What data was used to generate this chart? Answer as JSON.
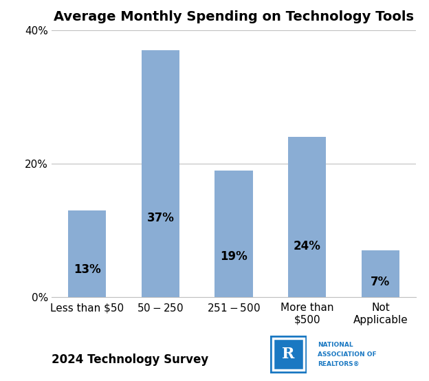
{
  "title": "Average Monthly Spending on Technology Tools",
  "categories": [
    "Less than $50",
    "$50 - $250",
    "$251 - $500",
    "More than\n$500",
    "Not\nApplicable"
  ],
  "values": [
    13,
    37,
    19,
    24,
    7
  ],
  "labels": [
    "13%",
    "37%",
    "19%",
    "24%",
    "7%"
  ],
  "bar_color": "#8aadd4",
  "ylim": [
    0,
    40
  ],
  "yticks": [
    0,
    20,
    40
  ],
  "ytick_labels": [
    "0%",
    "20%",
    "40%"
  ],
  "grid_color": "#c0c0c0",
  "title_fontsize": 14,
  "tick_fontsize": 11,
  "bar_label_fontsize": 12,
  "footer_text": "2024 Technology Survey",
  "footer_fontsize": 12,
  "background_color": "#ffffff",
  "text_color": "#000000",
  "nar_blue": "#1a78c2",
  "bar_width": 0.52
}
